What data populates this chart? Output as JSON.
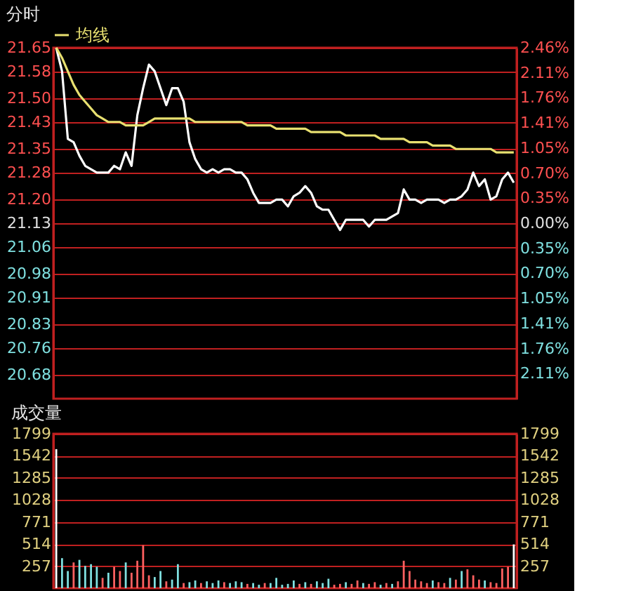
{
  "chart_data": [
    {
      "type": "line",
      "title": "分时",
      "categories": [
        null,
        null,
        null,
        null,
        null,
        null,
        null,
        null,
        null,
        null,
        null,
        null,
        null,
        null,
        null,
        null,
        null,
        null,
        null,
        null,
        null,
        null,
        null,
        null,
        null,
        null,
        null,
        null,
        null,
        null,
        null,
        null,
        null,
        null,
        null,
        null,
        null,
        null,
        null,
        null,
        null,
        null,
        null,
        null,
        null,
        null,
        null,
        null,
        null,
        null,
        null,
        null,
        null,
        null,
        null,
        null,
        null,
        null,
        null,
        null,
        null,
        null,
        null,
        null,
        null,
        null,
        null,
        null,
        null,
        null,
        null,
        null,
        null,
        null,
        null,
        null,
        null,
        null,
        null,
        null
      ],
      "series": [
        {
          "color": "#ffffff",
          "values": [
            21.65,
            21.58,
            21.38,
            21.37,
            21.33,
            21.3,
            21.29,
            21.28,
            21.28,
            21.28,
            21.3,
            21.29,
            21.34,
            21.3,
            21.45,
            21.53,
            21.6,
            21.58,
            21.53,
            21.48,
            21.53,
            21.53,
            21.49,
            21.37,
            21.32,
            21.29,
            21.28,
            21.29,
            21.28,
            21.29,
            21.29,
            21.28,
            21.28,
            21.26,
            21.22,
            21.19,
            21.19,
            21.19,
            21.2,
            21.2,
            21.18,
            21.21,
            21.22,
            21.24,
            21.22,
            21.18,
            21.17,
            21.17,
            21.14,
            21.11,
            21.14,
            21.14,
            21.14,
            21.14,
            21.12,
            21.14,
            21.14,
            21.14,
            21.15,
            21.16,
            21.23,
            21.2,
            21.2,
            21.19,
            21.2,
            21.2,
            21.2,
            21.19,
            21.2,
            21.2,
            21.21,
            21.23,
            21.28,
            21.24,
            21.26,
            21.2,
            21.21,
            21.26,
            21.28,
            21.25
          ]
        },
        {
          "name": "均线",
          "color": "#e8e070",
          "values": [
            21.65,
            21.62,
            21.58,
            21.54,
            21.51,
            21.49,
            21.47,
            21.45,
            21.44,
            21.43,
            21.43,
            21.43,
            21.42,
            21.42,
            21.42,
            21.42,
            21.43,
            21.44,
            21.44,
            21.44,
            21.44,
            21.44,
            21.44,
            21.44,
            21.43,
            21.43,
            21.43,
            21.43,
            21.43,
            21.43,
            21.43,
            21.43,
            21.43,
            21.42,
            21.42,
            21.42,
            21.42,
            21.42,
            21.41,
            21.41,
            21.41,
            21.41,
            21.41,
            21.41,
            21.4,
            21.4,
            21.4,
            21.4,
            21.4,
            21.4,
            21.39,
            21.39,
            21.39,
            21.39,
            21.39,
            21.39,
            21.38,
            21.38,
            21.38,
            21.38,
            21.38,
            21.37,
            21.37,
            21.37,
            21.37,
            21.36,
            21.36,
            21.36,
            21.36,
            21.35,
            21.35,
            21.35,
            21.35,
            21.35,
            21.35,
            21.35,
            21.34,
            21.34,
            21.34,
            21.34
          ]
        }
      ],
      "ylim": [
        20.61,
        21.65
      ],
      "yticks": [
        20.68,
        20.76,
        20.83,
        20.91,
        20.98,
        21.06,
        21.13,
        {
          "value": 21.2,
          "label": "21.20"
        },
        21.28,
        21.35,
        21.43,
        {
          "value": 21.5,
          "label": "21.50"
        },
        21.58,
        21.65
      ],
      "y2lim": [
        -2.46,
        2.46
      ],
      "y2ticks": [
        {
          "value": -2.11,
          "label": "2.11%"
        },
        {
          "value": -1.76,
          "label": "1.76%"
        },
        {
          "value": -1.41,
          "label": "1.41%"
        },
        {
          "value": -1.05,
          "label": "1.05%"
        },
        {
          "value": -0.7,
          "label": "0.70%"
        },
        {
          "value": -0.35,
          "label": "0.35%"
        },
        {
          "value": 0,
          "label": "0.00%"
        },
        {
          "value": 0.35,
          "label": "0.35%"
        },
        {
          "value": 0.7,
          "label": "0.70%"
        },
        {
          "value": 1.05,
          "label": "1.05%"
        },
        {
          "value": 1.41,
          "label": "1.41%"
        },
        {
          "value": 1.76,
          "label": "1.76%"
        },
        {
          "value": 2.11,
          "label": "2.11%"
        },
        {
          "value": 2.46,
          "label": "2.46%"
        }
      ],
      "grid": "y",
      "legend": "top",
      "tick_labels": "y",
      "line_style": "solid",
      "marker": "none"
    },
    {
      "type": "bar",
      "title": "成交量",
      "categories": [
        null,
        null,
        null,
        null,
        null,
        null,
        null,
        null,
        null,
        null,
        null,
        null,
        null,
        null,
        null,
        null,
        null,
        null,
        null,
        null,
        null,
        null,
        null,
        null,
        null,
        null,
        null,
        null,
        null,
        null,
        null,
        null,
        null,
        null,
        null,
        null,
        null,
        null,
        null,
        null,
        null,
        null,
        null,
        null,
        null,
        null,
        null,
        null,
        null,
        null,
        null,
        null,
        null,
        null,
        null,
        null,
        null,
        null,
        null,
        null,
        null,
        null,
        null,
        null,
        null,
        null,
        null,
        null,
        null,
        null,
        null,
        null,
        null,
        null,
        null,
        null,
        null,
        null,
        null,
        null
      ],
      "values": [
        1620,
        350,
        200,
        300,
        330,
        260,
        280,
        250,
        120,
        180,
        250,
        200,
        300,
        180,
        320,
        500,
        150,
        130,
        200,
        80,
        100,
        280,
        60,
        70,
        90,
        60,
        80,
        60,
        90,
        70,
        60,
        80,
        70,
        50,
        60,
        40,
        60,
        60,
        120,
        40,
        50,
        90,
        50,
        70,
        50,
        80,
        60,
        110,
        40,
        50,
        70,
        50,
        90,
        60,
        50,
        70,
        40,
        60,
        50,
        80,
        320,
        200,
        100,
        80,
        60,
        90,
        70,
        60,
        120,
        100,
        200,
        220,
        150,
        100,
        90,
        70,
        60,
        230,
        250,
        510
      ],
      "colors": [
        "#ffffff",
        "#7fe0e0",
        "#7fe0e0",
        "#ff6060",
        "#7fe0e0",
        "#7fe0e0",
        "#7fe0e0",
        "#7fe0e0",
        "#ff6060",
        "#7fe0e0",
        "#ff6060",
        "#ff6060",
        "#7fe0e0",
        "#ff6060",
        "#ff6060",
        "#ff6060",
        "#ff6060",
        "#7fe0e0",
        "#7fe0e0",
        "#ff6060",
        "#7fe0e0",
        "#7fe0e0",
        "#ff6060",
        "#7fe0e0",
        "#7fe0e0",
        "#ff6060",
        "#7fe0e0",
        "#7fe0e0",
        "#7fe0e0",
        "#ff6060",
        "#7fe0e0",
        "#7fe0e0",
        "#7fe0e0",
        "#ff6060",
        "#7fe0e0",
        "#7fe0e0",
        "#ff6060",
        "#7fe0e0",
        "#7fe0e0",
        "#7fe0e0",
        "#7fe0e0",
        "#7fe0e0",
        "#ff6060",
        "#7fe0e0",
        "#ff6060",
        "#7fe0e0",
        "#7fe0e0",
        "#7fe0e0",
        "#ff6060",
        "#ff6060",
        "#7fe0e0",
        "#ff6060",
        "#ff6060",
        "#7fe0e0",
        "#ff6060",
        "#ff6060",
        "#7fe0e0",
        "#ff6060",
        "#7fe0e0",
        "#ff6060",
        "#ff6060",
        "#ff6060",
        "#ff6060",
        "#ff6060",
        "#ff6060",
        "#7fe0e0",
        "#ff6060",
        "#ff6060",
        "#7fe0e0",
        "#ff6060",
        "#7fe0e0",
        "#ff6060",
        "#ff6060",
        "#ff6060",
        "#7fe0e0",
        "#ff6060",
        "#ff6060",
        "#ff6060",
        "#ff6060",
        "#ffffff"
      ],
      "ylim": [
        0,
        1799
      ],
      "yticks": [
        257,
        514,
        771,
        1028,
        1285,
        1542,
        1799
      ],
      "y2lim": [
        0,
        1799
      ],
      "y2ticks": [
        257,
        514,
        771,
        1028,
        1285,
        1542,
        1799
      ],
      "grid": "y",
      "tick_labels": "y"
    }
  ]
}
